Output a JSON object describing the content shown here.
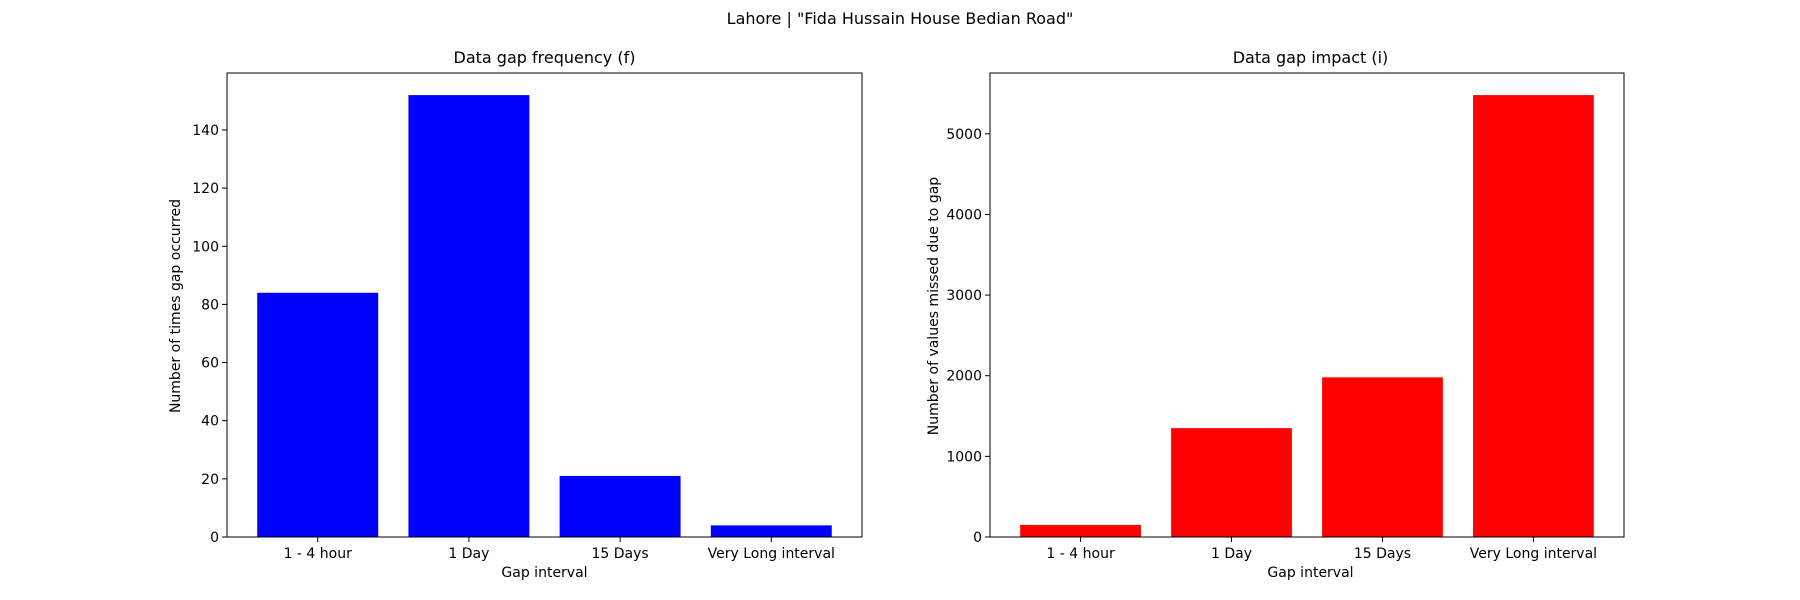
{
  "figure": {
    "suptitle": "Lahore | \"Fida Hussain House Bedian Road\""
  },
  "chart_data": [
    {
      "type": "bar",
      "title": "Data gap frequency (f)",
      "xlabel": "Gap interval",
      "ylabel": "Number of times gap occurred",
      "categories": [
        "1 - 4 hour",
        "1 Day",
        "15 Days",
        "Very Long interval"
      ],
      "values": [
        84,
        152,
        21,
        4
      ],
      "ylim": [
        0,
        159.6
      ],
      "yticks": [
        0,
        20,
        40,
        60,
        80,
        100,
        120,
        140
      ],
      "color": "#0000ff",
      "grid": false,
      "legend": "none"
    },
    {
      "type": "bar",
      "title": "Data gap impact (i)",
      "xlabel": "Gap interval",
      "ylabel": "Number of values missed due to gap",
      "categories": [
        "1 - 4 hour",
        "1 Day",
        "15 Days",
        "Very Long interval"
      ],
      "values": [
        150,
        1350,
        1980,
        5480
      ],
      "ylim": [
        0,
        5754
      ],
      "yticks": [
        0,
        1000,
        2000,
        3000,
        4000,
        5000
      ],
      "color": "#ff0000",
      "grid": false,
      "legend": "none"
    }
  ]
}
